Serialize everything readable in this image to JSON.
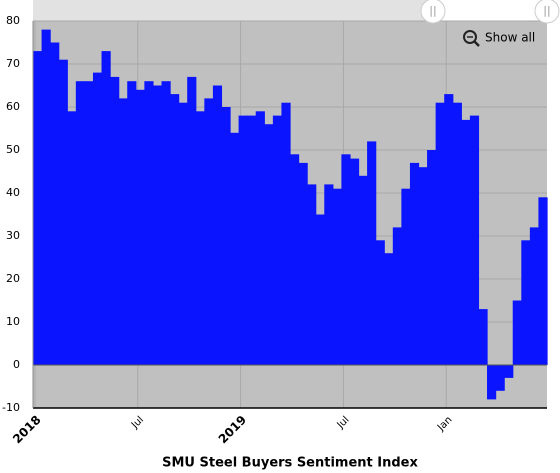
{
  "chart_data": {
    "type": "step-area",
    "title": "SMU Steel Buyers Sentiment Index",
    "categories": [
      "2018",
      null,
      null,
      null,
      null,
      null,
      null,
      null,
      null,
      null,
      null,
      null,
      "Jul",
      null,
      null,
      null,
      null,
      null,
      null,
      null,
      null,
      null,
      null,
      null,
      "2019",
      null,
      null,
      null,
      null,
      null,
      null,
      null,
      null,
      null,
      null,
      null,
      "Jul",
      null,
      null,
      null,
      null,
      null,
      null,
      null,
      null,
      null,
      null,
      null,
      "Jan",
      null,
      null,
      null,
      null,
      null,
      null,
      null,
      null,
      null,
      null,
      null
    ],
    "values": [
      73,
      78,
      75,
      71,
      59,
      66,
      66,
      68,
      73,
      67,
      62,
      66,
      64,
      66,
      65,
      66,
      63,
      61,
      67,
      59,
      62,
      65,
      60,
      54,
      58,
      58,
      59,
      56,
      58,
      61,
      49,
      47,
      42,
      35,
      42,
      41,
      49,
      48,
      44,
      52,
      29,
      26,
      32,
      41,
      47,
      46,
      50,
      61,
      63,
      61,
      57,
      58,
      13,
      -8,
      -6,
      -3,
      15,
      29,
      32,
      39
    ],
    "color": "#0a14ff",
    "plot_background": "#c0c0c0",
    "ylim": [
      -10,
      80
    ],
    "yticks": [
      -10,
      0,
      10,
      20,
      30,
      40,
      50,
      60,
      70,
      80
    ],
    "grid": true
  },
  "controls": {
    "zoom_reset": "Show all"
  }
}
